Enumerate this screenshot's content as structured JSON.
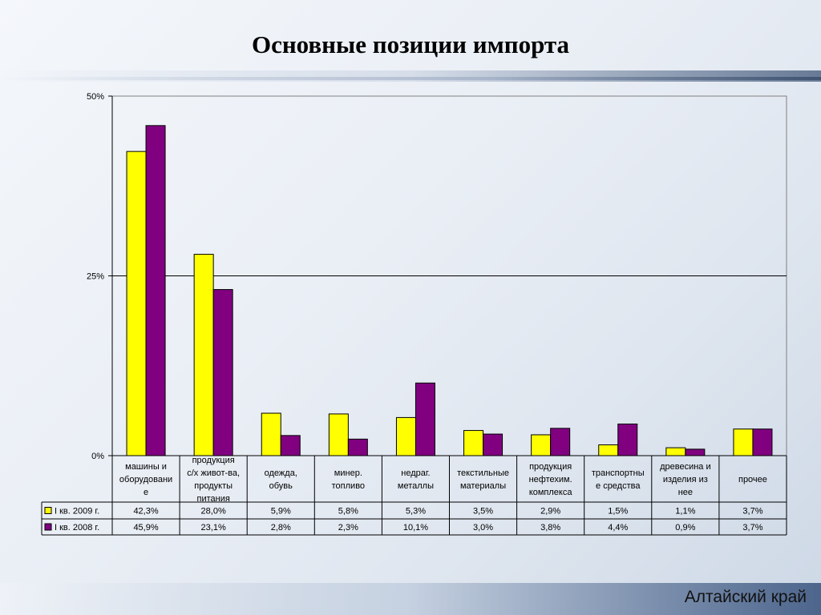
{
  "title": "Основные позиции импорта",
  "footer": "Алтайский край",
  "chart_data": {
    "type": "bar",
    "title": "Основные позиции импорта",
    "xlabel": "",
    "ylabel": "",
    "ylim": [
      0,
      50
    ],
    "yticks": [
      "0%",
      "25%",
      "50%"
    ],
    "grid": true,
    "legend": "data table, left",
    "categories": [
      "машины и оборудование",
      "продукция с/х живот-ва, продукты питания",
      "одежда, обувь",
      "минер. топливо",
      "недраг. металлы",
      "текстильные материалы",
      "продукция нефтехим. комплекса",
      "транспортные средства",
      "древесина и изделия из нее",
      "прочее"
    ],
    "series": [
      {
        "name": "I кв. 2009 г.",
        "color": "#ffff00",
        "values": [
          42.3,
          28.0,
          5.9,
          5.8,
          5.3,
          3.5,
          2.9,
          1.5,
          1.1,
          3.7
        ],
        "labels": [
          "42,3%",
          "28,0%",
          "5,9%",
          "5,8%",
          "5,3%",
          "3,5%",
          "2,9%",
          "1,5%",
          "1,1%",
          "3,7%"
        ]
      },
      {
        "name": "I кв. 2008 г.",
        "color": "#800080",
        "values": [
          45.9,
          23.1,
          2.8,
          2.3,
          10.1,
          3.0,
          3.8,
          4.4,
          0.9,
          3.7
        ],
        "labels": [
          "45,9%",
          "23,1%",
          "2,8%",
          "2,3%",
          "10,1%",
          "3,0%",
          "3,8%",
          "4,4%",
          "0,9%",
          "3,7%"
        ]
      }
    ]
  }
}
